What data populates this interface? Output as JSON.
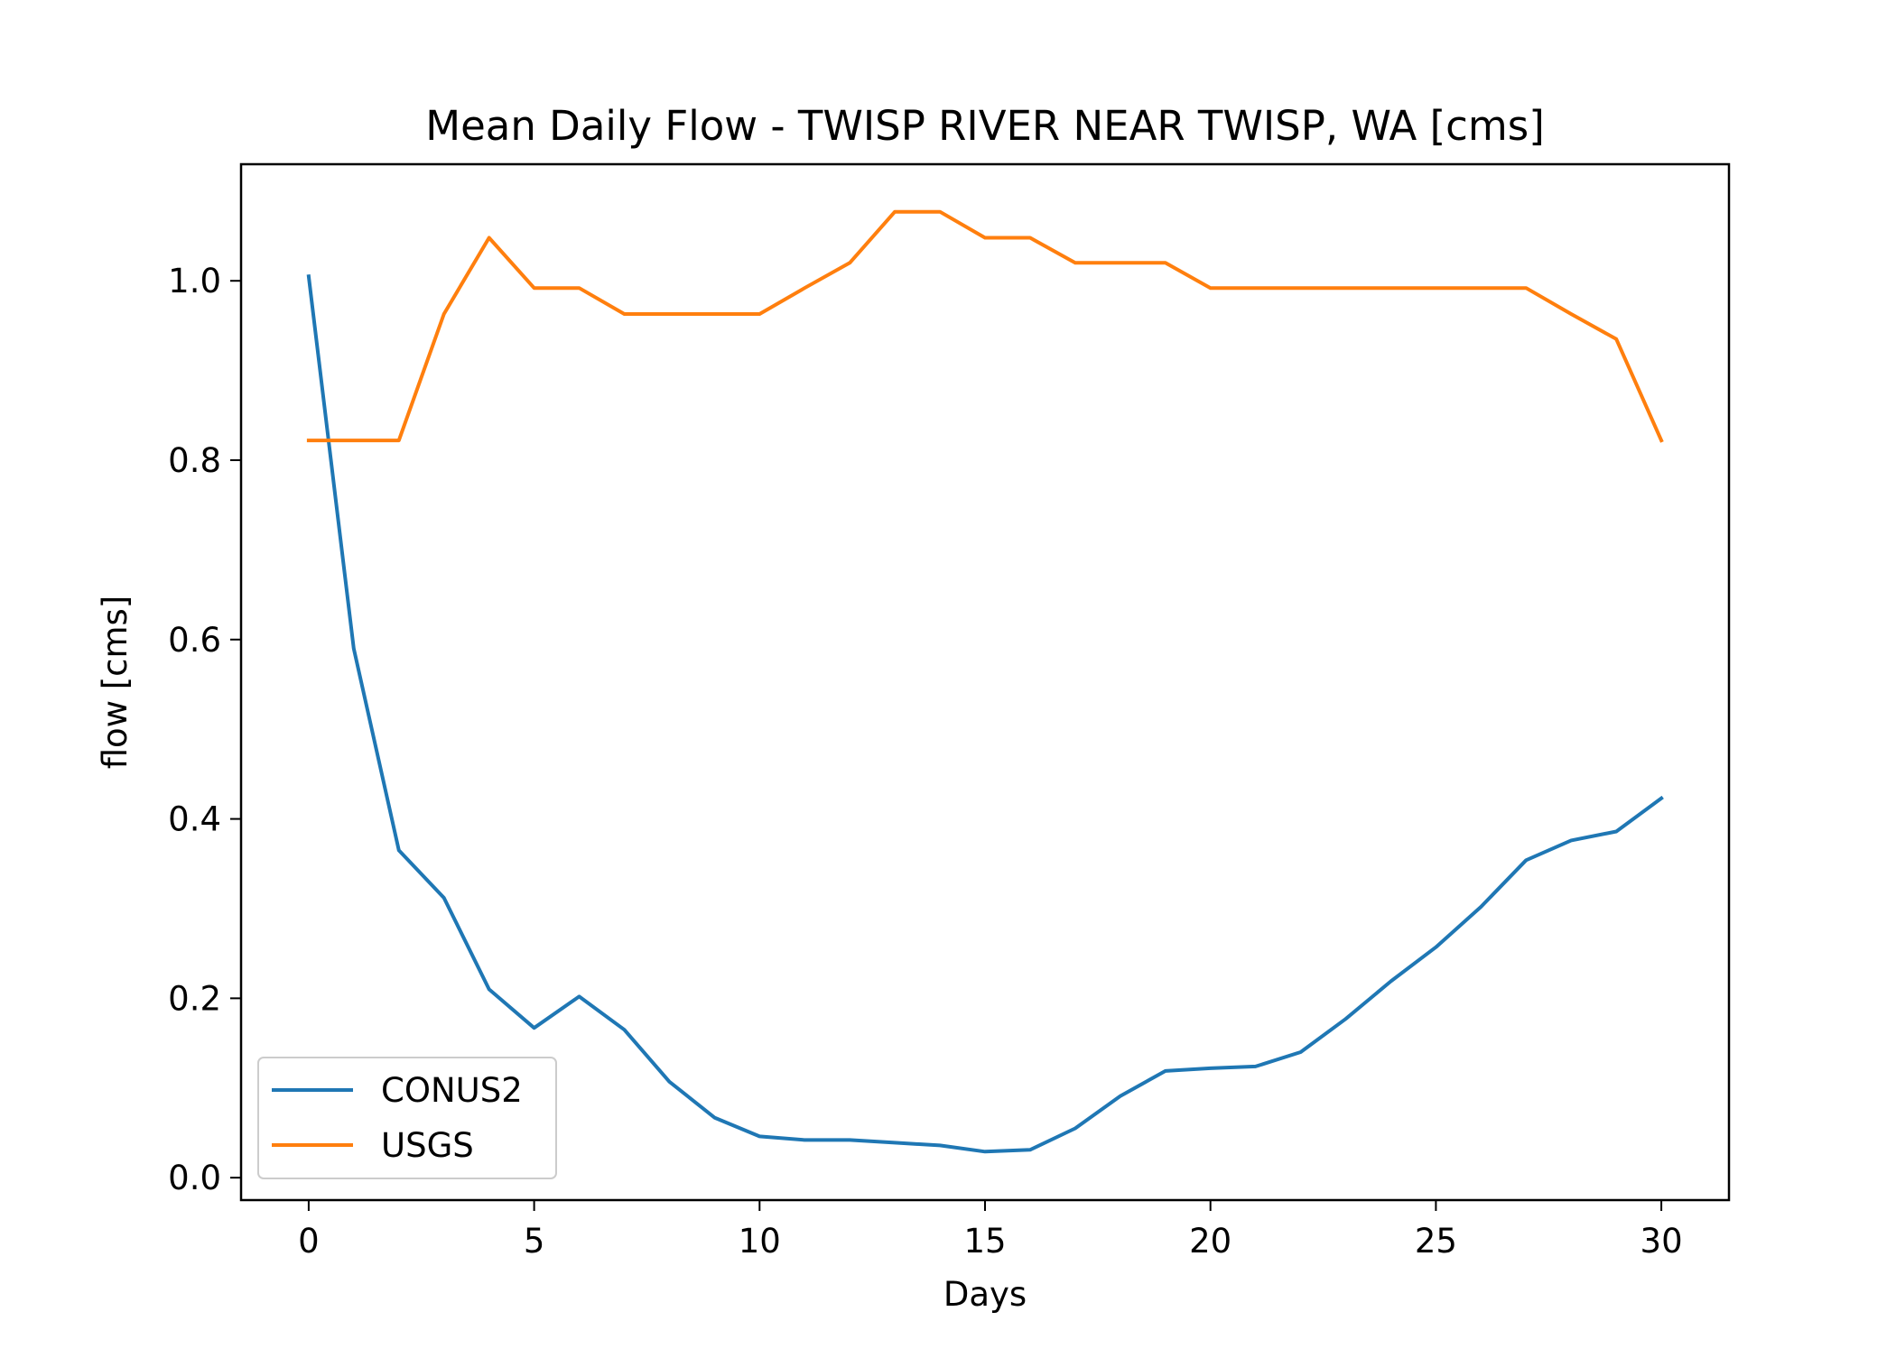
{
  "chart_data": {
    "type": "line",
    "title": "Mean Daily Flow - TWISP RIVER NEAR TWISP, WA [cms]",
    "xlabel": "Days",
    "ylabel": "flow [cms]",
    "xlim": [
      -1.5,
      31.5
    ],
    "ylim": [
      -0.025,
      1.13
    ],
    "xticks": [
      0,
      5,
      10,
      15,
      20,
      25,
      30
    ],
    "xtick_labels": [
      "0",
      "5",
      "10",
      "15",
      "20",
      "25",
      "30"
    ],
    "yticks": [
      0.0,
      0.2,
      0.4,
      0.6,
      0.8,
      1.0
    ],
    "ytick_labels": [
      "0.0",
      "0.2",
      "0.4",
      "0.6",
      "0.8",
      "1.0"
    ],
    "grid": false,
    "legend_position": "lower-left",
    "x": [
      0,
      1,
      2,
      3,
      4,
      5,
      6,
      7,
      8,
      9,
      10,
      11,
      12,
      13,
      14,
      15,
      16,
      17,
      18,
      19,
      20,
      21,
      22,
      23,
      24,
      25,
      26,
      27,
      28,
      29,
      30
    ],
    "series": [
      {
        "name": "CONUS2",
        "color": "#1f77b4",
        "values": [
          1.005,
          0.59,
          0.365,
          0.312,
          0.21,
          0.167,
          0.202,
          0.165,
          0.107,
          0.067,
          0.046,
          0.042,
          0.042,
          0.039,
          0.036,
          0.029,
          0.031,
          0.055,
          0.091,
          0.119,
          0.122,
          0.124,
          0.14,
          0.177,
          0.219,
          0.257,
          0.302,
          0.354,
          0.376,
          0.386,
          0.423
        ]
      },
      {
        "name": "USGS",
        "color": "#ff7f0e",
        "values": [
          0.822,
          0.822,
          0.822,
          0.963,
          1.048,
          0.992,
          0.992,
          0.963,
          0.963,
          0.963,
          0.963,
          0.992,
          1.02,
          1.077,
          1.077,
          1.048,
          1.048,
          1.02,
          1.02,
          1.02,
          0.992,
          0.992,
          0.992,
          0.992,
          0.992,
          0.992,
          0.992,
          0.992,
          0.963,
          0.935,
          0.822
        ]
      }
    ]
  }
}
